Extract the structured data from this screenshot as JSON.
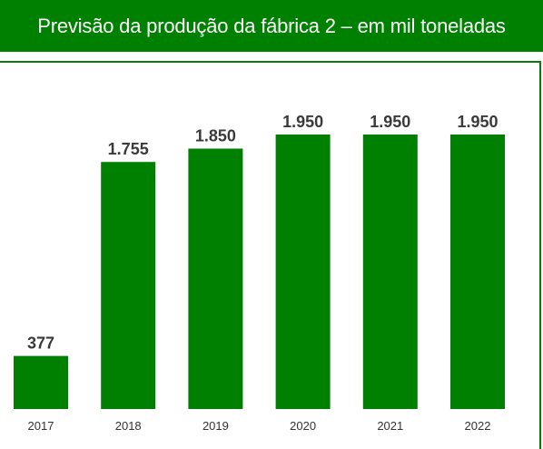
{
  "header": {
    "title": "Previsão da produção da fábrica 2 – em mil toneladas"
  },
  "colors": {
    "accent": "#008000",
    "bar": "#008000"
  },
  "chart_data": {
    "type": "bar",
    "title": "Previsão da produção da fábrica 2 – em mil toneladas",
    "categories": [
      "2017",
      "2018",
      "2019",
      "2020",
      "2021",
      "2022"
    ],
    "values": [
      377,
      1755,
      1850,
      1950,
      1950,
      1950
    ],
    "value_labels": [
      "377",
      "1.755",
      "1.850",
      "1.950",
      "1.950",
      "1.950"
    ],
    "xlabel": "",
    "ylabel": "",
    "ylim": [
      0,
      2100
    ],
    "grid": false,
    "legend": "none"
  }
}
